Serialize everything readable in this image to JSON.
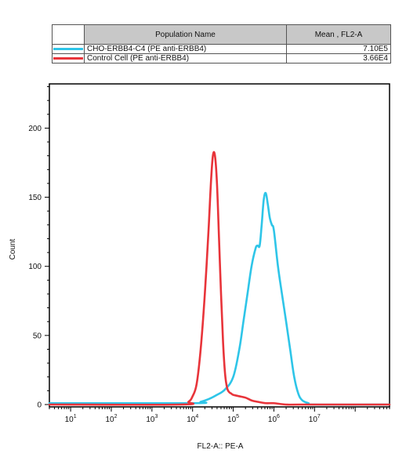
{
  "legend": {
    "header_name": "Population Name",
    "header_stat": "Mean , FL2-A",
    "rows": [
      {
        "name": "CHO-ERBB4-C4 (PE anti-ERBB4)",
        "value": "7.10E5",
        "color": "#2ec5e8"
      },
      {
        "name": "Control Cell (PE anti-ERBB4)",
        "value": "3.66E4",
        "color": "#e8343a"
      }
    ]
  },
  "chart_data": {
    "type": "line",
    "xlabel": "FL2-A:: PE-A",
    "ylabel": "Count",
    "x_scale": "log",
    "xlim": [
      3,
      700000000
    ],
    "ylim": [
      0,
      232
    ],
    "y_ticks": [
      0,
      50,
      100,
      150,
      200
    ],
    "x_ticks": [
      {
        "value": 10,
        "base": "10",
        "exp": "1"
      },
      {
        "value": 100,
        "base": "10",
        "exp": "2"
      },
      {
        "value": 1000,
        "base": "10",
        "exp": "3"
      },
      {
        "value": 10000,
        "base": "10",
        "exp": "4"
      },
      {
        "value": 100000,
        "base": "10",
        "exp": "5"
      },
      {
        "value": 1000000,
        "base": "10",
        "exp": "6"
      },
      {
        "value": 10000000,
        "base": "10",
        "exp": "7"
      }
    ],
    "series": [
      {
        "name": "CHO-ERBB4-C4 (PE anti-ERBB4)",
        "color": "#2ec5e8",
        "x": [
          3,
          10000,
          15800,
          25100,
          39800,
          63100,
          100000,
          141000,
          178000,
          224000,
          282000,
          355000,
          398000,
          447000,
          501000,
          562000,
          631000,
          708000,
          794000,
          891000,
          1000000,
          1260000,
          1580000,
          2000000,
          2510000,
          3160000,
          3980000,
          5010000,
          7080000,
          10000000,
          700000000
        ],
        "y": [
          1,
          1,
          2,
          4,
          7,
          11,
          20,
          40,
          60,
          80,
          100,
          113,
          115,
          115,
          130,
          148,
          153,
          145,
          135,
          130,
          126,
          100,
          80,
          60,
          40,
          20,
          8,
          3,
          1,
          0,
          0
        ]
      },
      {
        "name": "Control Cell (PE anti-ERBB4)",
        "color": "#e8343a",
        "x": [
          3,
          5010,
          7940,
          10000,
          12600,
          15800,
          20000,
          25100,
          28200,
          31600,
          35500,
          39800,
          44700,
          50100,
          56200,
          63100,
          70800,
          79400,
          89100,
          100000,
          141000,
          200000,
          282000,
          398000,
          631000,
          1000000,
          2000000,
          5010000,
          700000000
        ],
        "y": [
          0,
          0,
          2,
          6,
          15,
          40,
          80,
          130,
          160,
          180,
          180,
          160,
          120,
          80,
          45,
          22,
          12,
          9,
          8,
          7,
          6,
          5,
          3,
          2,
          1,
          1,
          0,
          0,
          0
        ]
      }
    ]
  }
}
